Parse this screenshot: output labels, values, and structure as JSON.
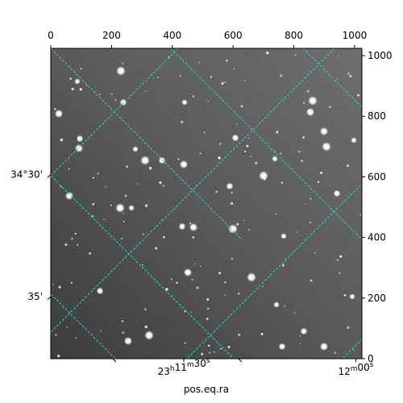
{
  "chart_data": {
    "type": "heatmap",
    "title": "",
    "xlabel": "pos.eq.ra",
    "ylabel": "",
    "pixel_xlim": [
      0,
      1024
    ],
    "pixel_ylim": [
      0,
      1024
    ],
    "grid": true,
    "grid_color": "#2ad4d4",
    "colormap": "gray",
    "top_ticks": [
      0,
      200,
      400,
      600,
      800,
      1000
    ],
    "right_ticks": [
      0,
      200,
      400,
      600,
      800,
      1000
    ],
    "ra_ticks": [
      {
        "h": "23",
        "m": "11",
        "s": "30",
        "x": 438
      },
      {
        "h": "",
        "m": "12",
        "s": "00",
        "x": 1004
      }
    ],
    "dec_ticks": [
      {
        "label": "34°30'",
        "y": 608
      },
      {
        "label": "35'",
        "y": 205
      }
    ]
  }
}
